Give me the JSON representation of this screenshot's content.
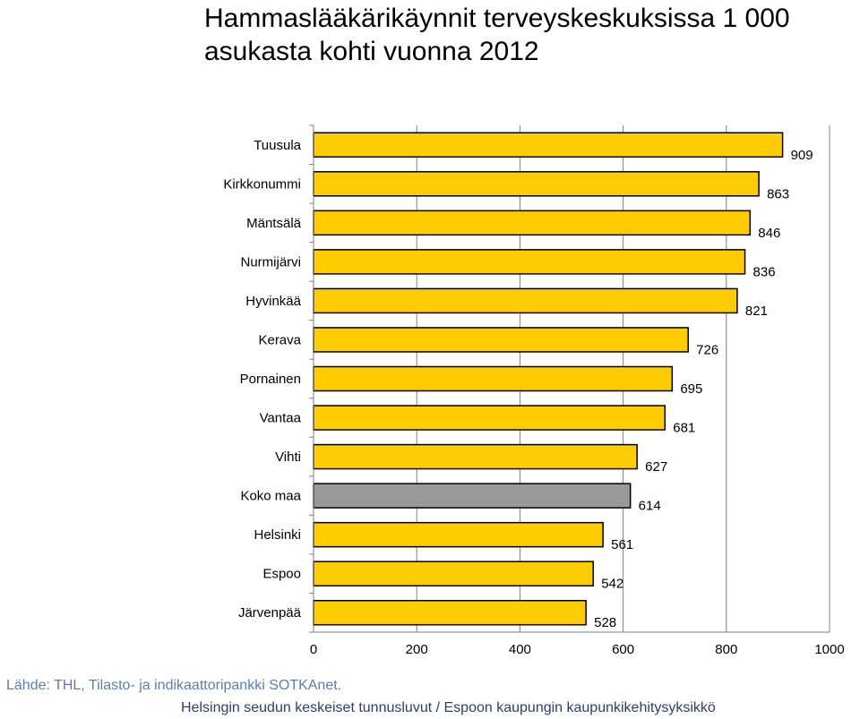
{
  "title": "Hammaslääkärikäynnit terveyskeskuksissa 1 000 asukasta kohti vuonna 2012",
  "source": "Lähde: THL, Tilasto- ja indikaattoripankki SOTKAnet.",
  "footer": "Helsingin seudun keskeiset tunnusluvut / Espoon kaupungin kaupunkikehitysyksikkö",
  "chart_data": {
    "type": "bar",
    "orientation": "horizontal",
    "title": "Hammaslääkärikäynnit terveyskeskuksissa 1 000 asukasta kohti vuonna 2012",
    "categories": [
      "Tuusula",
      "Kirkkonummi",
      "Mäntsälä",
      "Nurmijärvi",
      "Hyvinkää",
      "Kerava",
      "Pornainen",
      "Vantaa",
      "Vihti",
      "Koko maa",
      "Helsinki",
      "Espoo",
      "Järvenpää"
    ],
    "values": [
      909,
      863,
      846,
      836,
      821,
      726,
      695,
      681,
      627,
      614,
      561,
      542,
      528
    ],
    "highlight": "Koko maa",
    "xlim": [
      0,
      1000
    ],
    "xticks": [
      0,
      200,
      400,
      600,
      800,
      1000
    ],
    "xlabel": "",
    "ylabel": "",
    "grid": "vertical",
    "legend": "none",
    "colors": {
      "bar": "#ffcc00",
      "highlight": "#999999",
      "outline": "#000000",
      "grid": "#808080"
    }
  }
}
